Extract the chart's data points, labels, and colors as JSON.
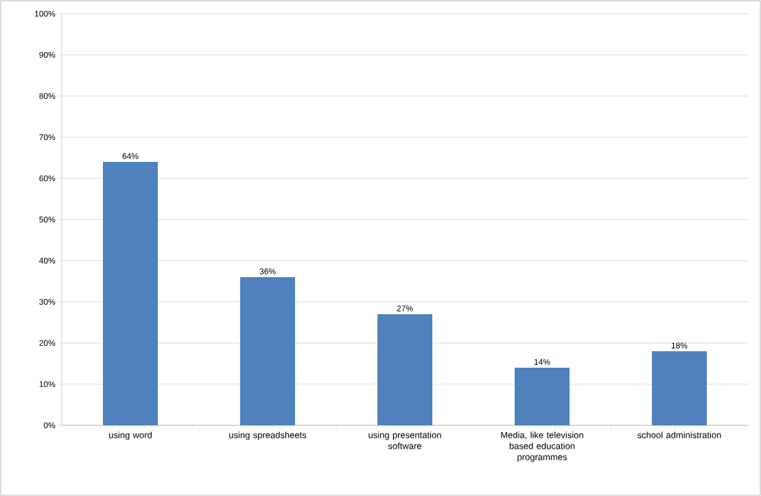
{
  "chart_data": {
    "type": "bar",
    "categories": [
      "using word",
      "using spreadsheets",
      "using presentation software",
      "Media, like television based education programmes",
      "school administration"
    ],
    "values": [
      64,
      36,
      27,
      14,
      18
    ],
    "value_labels": [
      "64%",
      "36%",
      "27%",
      "14%",
      "18%"
    ],
    "color": "#4f81bd",
    "ylim": [
      0,
      100
    ],
    "yticks": [
      {
        "value": 0,
        "label": "0%"
      },
      {
        "value": 10,
        "label": "10%"
      },
      {
        "value": 20,
        "label": "20%"
      },
      {
        "value": 30,
        "label": "30%"
      },
      {
        "value": 40,
        "label": "40%"
      },
      {
        "value": 50,
        "label": "50%"
      },
      {
        "value": 60,
        "label": "60%"
      },
      {
        "value": 70,
        "label": "70%"
      },
      {
        "value": 80,
        "label": "80%"
      },
      {
        "value": 90,
        "label": "90%"
      },
      {
        "value": 100,
        "label": "100%"
      }
    ],
    "grid": "y"
  }
}
